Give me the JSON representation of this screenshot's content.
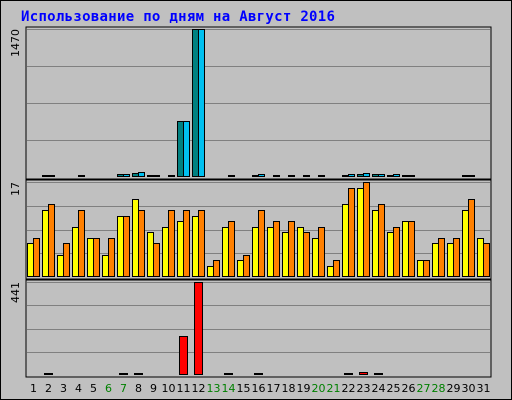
{
  "chart_data": {
    "type": "bar",
    "title": "Использование по дням на Август 2016",
    "categories": [
      "1",
      "2",
      "3",
      "4",
      "5",
      "6",
      "7",
      "8",
      "9",
      "10",
      "11",
      "12",
      "13",
      "14",
      "15",
      "16",
      "17",
      "18",
      "19",
      "20",
      "21",
      "22",
      "23",
      "24",
      "25",
      "26",
      "27",
      "28",
      "29",
      "30",
      "31"
    ],
    "weekend_days": [
      6,
      7,
      13,
      14,
      20,
      21,
      27,
      28
    ],
    "panels": [
      {
        "name": "top",
        "ymax_label": "1470",
        "ymin_label": "",
        "ylim": [
          0,
          1470
        ],
        "series": [
          {
            "color": "#008080",
            "values": [
              10,
              18,
              10,
              14,
              8,
              8,
              25,
              35,
              18,
              14,
              560,
              1470,
              10,
              14,
              10,
              22,
              14,
              14,
              14,
              14,
              10,
              18,
              32,
              25,
              18,
              18,
              10,
              10,
              10,
              18,
              10
            ]
          },
          {
            "color": "#00c0f0",
            "values": [
              14,
              22,
              14,
              18,
              10,
              10,
              32,
              45,
              22,
              18,
              560,
              1470,
              14,
              18,
              14,
              25,
              18,
              18,
              18,
              18,
              14,
              25,
              40,
              32,
              25,
              22,
              14,
              14,
              14,
              22,
              14
            ]
          }
        ]
      },
      {
        "name": "middle",
        "ymax_label": "17",
        "ymin_label": "",
        "ylim": [
          0,
          17
        ],
        "series": [
          {
            "color": "#ffff00",
            "values": [
              6,
              12,
              4,
              9,
              7,
              4,
              11,
              14,
              8,
              9,
              10,
              11,
              2,
              9,
              3,
              9,
              9,
              8,
              9,
              7,
              2,
              13,
              16,
              12,
              8,
              10,
              3,
              6,
              6,
              12,
              7
            ]
          },
          {
            "color": "#ff8000",
            "values": [
              7,
              13,
              6,
              12,
              7,
              7,
              11,
              12,
              6,
              12,
              12,
              12,
              3,
              10,
              4,
              12,
              10,
              10,
              8,
              9,
              3,
              16,
              17,
              13,
              9,
              10,
              3,
              7,
              7,
              14,
              6
            ]
          }
        ]
      },
      {
        "name": "bottom",
        "ymax_label": "441",
        "ymin_label": "",
        "ylim": [
          0,
          441
        ],
        "series": [
          {
            "color": "#ff0000",
            "values": [
              3,
              10,
              3,
              5,
              3,
              3,
              8,
              10,
              5,
              3,
              185,
              441,
              3,
              8,
              3,
              10,
              5,
              5,
              3,
              5,
              3,
              10,
              15,
              10,
              5,
              5,
              3,
              3,
              3,
              5,
              3
            ]
          }
        ]
      }
    ],
    "colors": {
      "background": "#c0c0c0",
      "title": "#0000ff",
      "weekday_label": "#000000",
      "weekend_label": "#008000",
      "gridline": "#808080"
    }
  }
}
